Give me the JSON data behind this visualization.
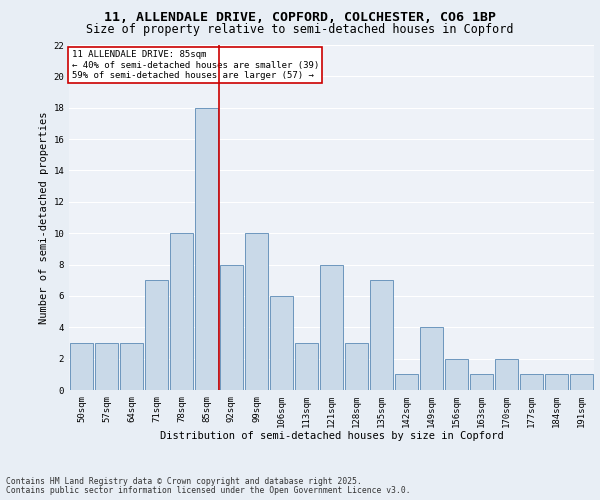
{
  "title1": "11, ALLENDALE DRIVE, COPFORD, COLCHESTER, CO6 1BP",
  "title2": "Size of property relative to semi-detached houses in Copford",
  "xlabel": "Distribution of semi-detached houses by size in Copford",
  "ylabel": "Number of semi-detached properties",
  "categories": [
    "50sqm",
    "57sqm",
    "64sqm",
    "71sqm",
    "78sqm",
    "85sqm",
    "92sqm",
    "99sqm",
    "106sqm",
    "113sqm",
    "121sqm",
    "128sqm",
    "135sqm",
    "142sqm",
    "149sqm",
    "156sqm",
    "163sqm",
    "170sqm",
    "177sqm",
    "184sqm",
    "191sqm"
  ],
  "values": [
    3,
    3,
    3,
    7,
    10,
    18,
    8,
    10,
    6,
    3,
    8,
    3,
    7,
    1,
    4,
    2,
    1,
    2,
    1,
    1,
    1
  ],
  "bar_color": "#c9d9e8",
  "bar_edge_color": "#5a8ab5",
  "highlight_index": 5,
  "highlight_line_color": "#cc0000",
  "annotation_text": "11 ALLENDALE DRIVE: 85sqm\n← 40% of semi-detached houses are smaller (39)\n59% of semi-detached houses are larger (57) →",
  "annotation_box_color": "#cc0000",
  "ylim": [
    0,
    22
  ],
  "yticks": [
    0,
    2,
    4,
    6,
    8,
    10,
    12,
    14,
    16,
    18,
    20,
    22
  ],
  "footer1": "Contains HM Land Registry data © Crown copyright and database right 2025.",
  "footer2": "Contains public sector information licensed under the Open Government Licence v3.0.",
  "bg_color": "#e8eef5",
  "plot_bg_color": "#eef2f8",
  "grid_color": "#ffffff",
  "title_fontsize": 9.5,
  "subtitle_fontsize": 8.5,
  "axis_label_fontsize": 7.5,
  "tick_fontsize": 6.5,
  "ann_fontsize": 6.5,
  "footer_fontsize": 5.8
}
